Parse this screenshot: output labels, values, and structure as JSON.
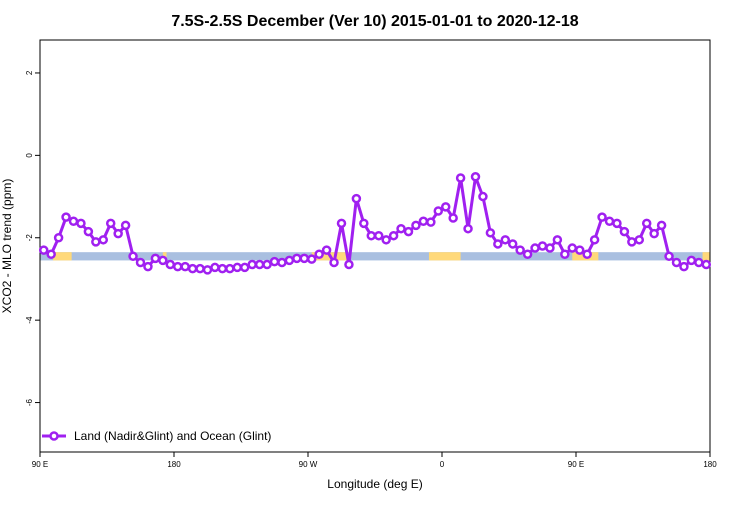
{
  "chart_data": {
    "type": "line",
    "title": "7.5S-2.5S December (Ver 10)   2015-01-01 to 2020-12-18",
    "xlabel": "Longitude (deg E)",
    "ylabel": "XCO2 - MLO trend (ppm)",
    "xlim": [
      90,
      450
    ],
    "ylim": [
      -7.2,
      2.8
    ],
    "x_ticks": [
      {
        "value": 90,
        "label": "90 E"
      },
      {
        "value": 162,
        "label": "180"
      },
      {
        "value": 234,
        "label": "90 W"
      },
      {
        "value": 306,
        "label": "0"
      },
      {
        "value": 378,
        "label": "90 E"
      },
      {
        "value": 450,
        "label": "180"
      }
    ],
    "y_ticks": [
      {
        "value": 2,
        "label": "2"
      },
      {
        "value": 0,
        "label": "0"
      },
      {
        "value": -2,
        "label": "-2"
      },
      {
        "value": -4,
        "label": "-4"
      },
      {
        "value": -6,
        "label": "-6"
      }
    ],
    "grid": false,
    "legend_position": "bottom-left",
    "series": [
      {
        "name": "Land (Nadir&Glint) and Ocean (Glint)",
        "color": "#a020f0",
        "x": [
          92,
          96,
          100,
          104,
          108,
          112,
          116,
          120,
          124,
          128,
          132,
          136,
          140,
          144,
          148,
          152,
          156,
          160,
          164,
          168,
          172,
          176,
          180,
          184,
          188,
          192,
          196,
          200,
          204,
          208,
          212,
          216,
          220,
          224,
          228,
          232,
          236,
          240,
          244,
          248,
          252,
          256,
          260,
          264,
          268,
          272,
          276,
          280,
          284,
          288,
          292,
          296,
          300,
          304,
          308,
          312,
          316,
          320,
          324,
          328,
          332,
          336,
          340,
          344,
          348,
          352,
          356,
          360,
          364,
          368,
          372,
          376,
          380,
          384,
          388,
          392,
          396,
          400,
          404,
          408,
          412,
          416,
          420,
          424,
          428,
          432,
          436,
          440,
          444,
          448
        ],
        "values": [
          -2.3,
          -2.4,
          -2.0,
          -1.5,
          -1.6,
          -1.65,
          -1.85,
          -2.1,
          -2.05,
          -1.65,
          -1.9,
          -1.7,
          -2.45,
          -2.6,
          -2.7,
          -2.5,
          -2.55,
          -2.65,
          -2.7,
          -2.7,
          -2.75,
          -2.75,
          -2.78,
          -2.72,
          -2.75,
          -2.75,
          -2.72,
          -2.72,
          -2.65,
          -2.65,
          -2.65,
          -2.58,
          -2.6,
          -2.55,
          -2.5,
          -2.5,
          -2.52,
          -2.4,
          -2.3,
          -2.6,
          -1.65,
          -2.65,
          -1.05,
          -1.65,
          -1.95,
          -1.95,
          -2.05,
          -1.95,
          -1.78,
          -1.85,
          -1.7,
          -1.6,
          -1.62,
          -1.35,
          -1.25,
          -1.52,
          -0.55,
          -1.78,
          -0.52,
          -1.0,
          -1.88,
          -2.15,
          -2.05,
          -2.15,
          -2.3,
          -2.4,
          -2.25,
          -2.2,
          -2.25,
          -2.05,
          -2.4,
          -2.25,
          -2.3,
          -2.4,
          -2.05,
          -1.5,
          -1.6,
          -1.65,
          -1.85,
          -2.1,
          -2.05,
          -1.65,
          -1.9,
          -1.7,
          -2.45,
          -2.6,
          -2.7,
          -2.55,
          -2.6,
          -2.65
        ]
      }
    ],
    "land_ocean_band": {
      "y_range": [
        -2.55,
        -2.35
      ],
      "ocean_color": "#a9bfe0",
      "land_color": "#ffd97a",
      "land_segments": [
        [
          97,
          107
        ],
        [
          156,
          158
        ],
        [
          236,
          255
        ],
        [
          299,
          316
        ],
        [
          376,
          390
        ],
        [
          446,
          450
        ]
      ]
    }
  }
}
